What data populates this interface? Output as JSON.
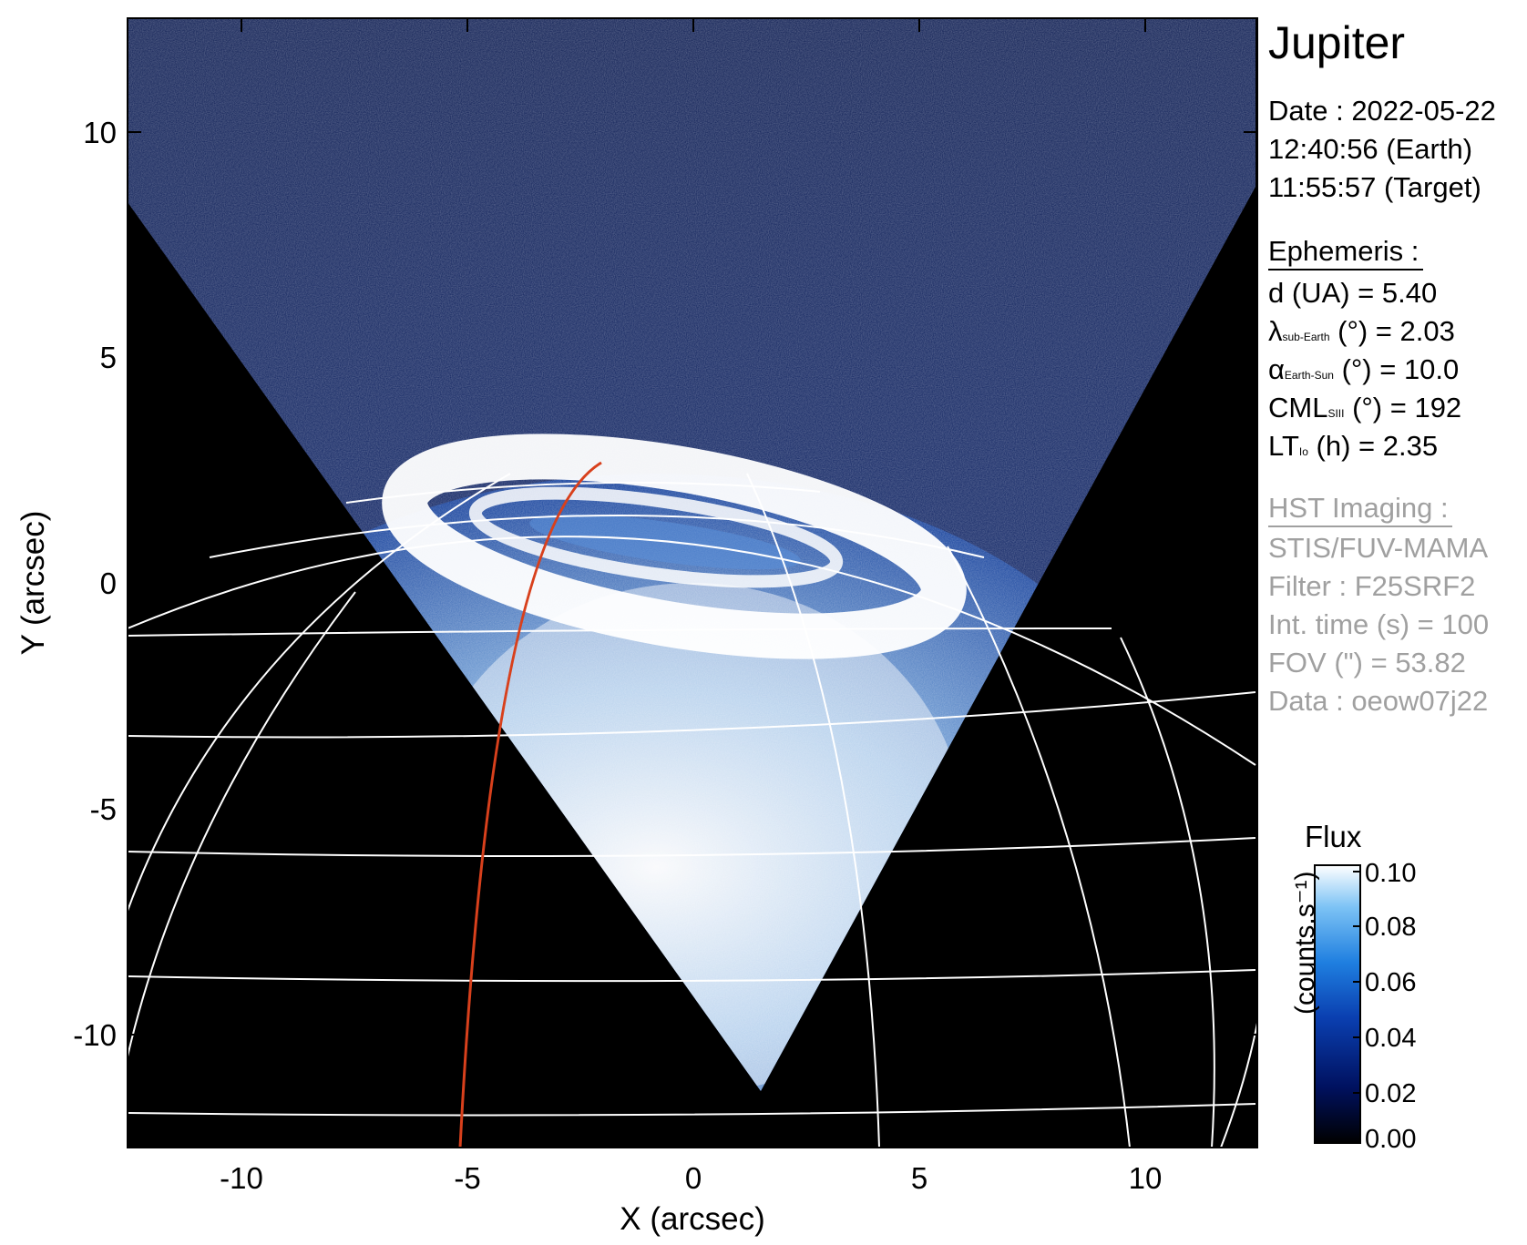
{
  "image": {
    "title": "Jupiter",
    "xlabel": "X (arcsec)",
    "ylabel": "Y (arcsec)",
    "xticks": [
      "-10",
      "-5",
      "0",
      "5",
      "10"
    ],
    "yticks": [
      "10",
      "5",
      "0",
      "-5",
      "-10"
    ],
    "xrange_arcsec": [
      -12.5,
      12.5
    ],
    "yrange_arcsec": [
      -12.5,
      12.5
    ]
  },
  "observation": {
    "date": "Date : 2022-05-22",
    "time_earth": "12:40:56 (Earth)",
    "time_target": "11:55:57 (Target)"
  },
  "ephemeris": {
    "heading": "Ephemeris :",
    "distance": "d (UA)    = 5.40",
    "sub_earth_symbol": "λ",
    "sub_earth_sub": "sub-Earth",
    "sub_earth_rest": " (°) = 2.03",
    "phase_symbol": "α",
    "phase_sub": "Earth-Sun",
    "phase_rest": " (°) = 10.0",
    "cml_symbol": "CML",
    "cml_sub": "SIII",
    "cml_rest": " (°) = 192",
    "lt_symbol": "LT",
    "lt_sub": "Io",
    "lt_rest": " (h) = 2.35"
  },
  "hst": {
    "heading": "HST Imaging :",
    "instrument": "STIS/FUV-MAMA",
    "filter": "Filter : F25SRF2",
    "int_time": "Int. time (s) = 100",
    "fov": "FOV (\") = 53.82",
    "dataset": "Data : oeow07j22"
  },
  "colorbar": {
    "title": "Flux",
    "label": "(counts.s⁻¹)",
    "ticks": [
      "0.10",
      "0.08",
      "0.06",
      "0.04",
      "0.02",
      "0.00"
    ],
    "colors": [
      "#000000",
      "#00115f",
      "#0a3fb0",
      "#1f7fe0",
      "#7dc3f5",
      "#ffffff"
    ]
  },
  "colors": {
    "background": "#000000",
    "sky": "#0a1a55",
    "aurora": "#ffffff",
    "grid": "#ffffff",
    "track": "#d8401c"
  }
}
